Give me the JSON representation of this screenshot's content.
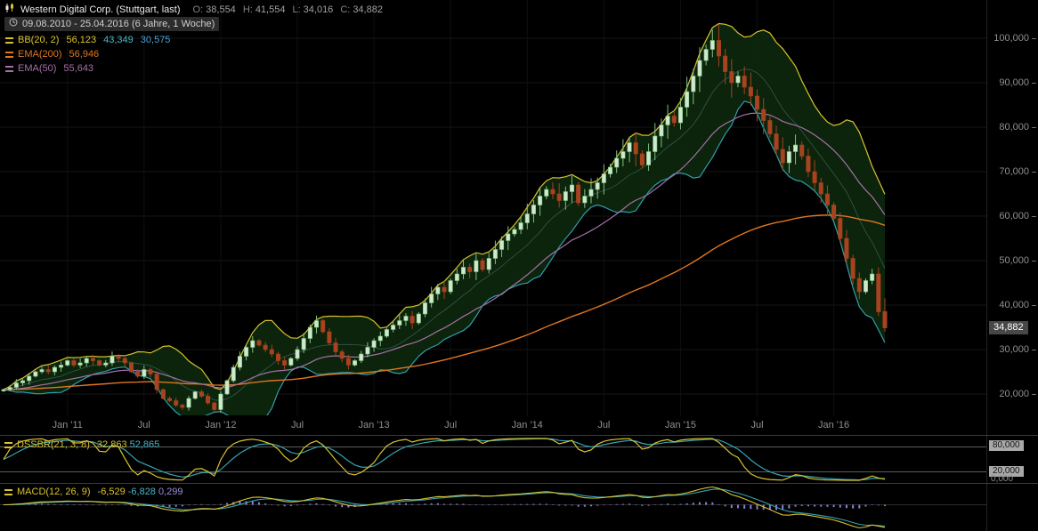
{
  "header": {
    "title": "Western Digital Corp. (Stuttgart, last)",
    "ohlc": [
      {
        "label": "O:",
        "value": "38,554"
      },
      {
        "label": "H:",
        "value": "41,554"
      },
      {
        "label": "L:",
        "value": "34,016"
      },
      {
        "label": "C:",
        "value": "34,882"
      }
    ],
    "period": "09.08.2010 - 25.04.2016 (6 Jahre, 1 Woche)"
  },
  "legend": [
    {
      "name": "BB(20, 2)",
      "color": "#d9c22f",
      "values": [
        {
          "text": "56,123",
          "color": "#d9c22f"
        },
        {
          "text": "43,349",
          "color": "#49b6c6"
        },
        {
          "text": "30,575",
          "color": "#4f9fd8"
        }
      ]
    },
    {
      "name": "EMA(200)",
      "color": "#df7621",
      "values": [
        {
          "text": "56,946",
          "color": "#df7621"
        }
      ]
    },
    {
      "name": "EMA(50)",
      "color": "#a570a8",
      "values": [
        {
          "text": "55,643",
          "color": "#a570a8"
        }
      ]
    }
  ],
  "price_axis": {
    "ticks": [
      {
        "v": 100,
        "label": "100,000"
      },
      {
        "v": 90,
        "label": "90,000"
      },
      {
        "v": 80,
        "label": "80,000"
      },
      {
        "v": 70,
        "label": "70,000"
      },
      {
        "v": 60,
        "label": "60,000"
      },
      {
        "v": 50,
        "label": "50,000"
      },
      {
        "v": 40,
        "label": "40,000"
      },
      {
        "v": 30,
        "label": "30,000"
      },
      {
        "v": 20,
        "label": "20,000"
      }
    ],
    "last_price_label": "34,882",
    "last_price_value": 34.882
  },
  "x_axis": {
    "ticks": [
      {
        "label": "Jan '11",
        "i": 10
      },
      {
        "label": "Jul",
        "i": 22
      },
      {
        "label": "Jan '12",
        "i": 34
      },
      {
        "label": "Jul",
        "i": 46
      },
      {
        "label": "Jan '13",
        "i": 58
      },
      {
        "label": "Jul",
        "i": 70
      },
      {
        "label": "Jan '14",
        "i": 82
      },
      {
        "label": "Jul",
        "i": 94
      },
      {
        "label": "Jan '15",
        "i": 106
      },
      {
        "label": "Jul",
        "i": 118
      },
      {
        "label": "Jan '16",
        "i": 130
      }
    ]
  },
  "oscillator_panel": {
    "name": "DSSBR(21, 3, 8)",
    "name_color": "#d9c22f",
    "values": [
      {
        "text": "32,863",
        "color": "#d9c22f"
      },
      {
        "text": "52,865",
        "color": "#49b6c6"
      }
    ],
    "levels": [
      {
        "value": 80,
        "label": "80,000",
        "badge": true
      },
      {
        "value": 20,
        "label": "20,000",
        "badge": true
      },
      {
        "value": 0,
        "label": "0,000",
        "badge": false
      }
    ]
  },
  "macd_panel": {
    "name": "MACD(12, 26, 9)",
    "name_color": "#d9c22f",
    "values": [
      {
        "text": "-6,529",
        "color": "#d9c22f"
      },
      {
        "text": "-6,828",
        "color": "#49b6c6"
      },
      {
        "text": "0,299",
        "color": "#9b8bdc"
      }
    ]
  },
  "chart_data": {
    "type": "candlestick",
    "title": "Western Digital Corp. (Stuttgart, last) weekly chart",
    "x_range": [
      "09.08.2010",
      "25.04.2016"
    ],
    "interval": "1 Woche",
    "y_range": [
      15,
      108.6
    ],
    "grid": true,
    "overlays": [
      {
        "type": "bollinger",
        "period": 20,
        "stddev": 2,
        "upper": 56.123,
        "middle": 43.349,
        "lower": 30.575
      },
      {
        "type": "ema",
        "period": 200,
        "value": 56.946
      },
      {
        "type": "ema",
        "period": 50,
        "value": 55.643
      }
    ],
    "sub_indicators": [
      {
        "type": "DSSBR",
        "params": [
          21,
          3,
          8
        ],
        "values": [
          32.863,
          52.865
        ],
        "levels": [
          80,
          20,
          0
        ]
      },
      {
        "type": "MACD",
        "params": [
          12,
          26,
          9
        ],
        "macd": -6.529,
        "signal": -6.828,
        "histogram": 0.299
      }
    ],
    "last_candle": {
      "o": 38.554,
      "h": 41.554,
      "l": 34.016,
      "c": 34.882
    },
    "close": [
      21.0,
      21.5,
      22.5,
      23.0,
      24.0,
      25.0,
      25.5,
      25.0,
      26.0,
      26.5,
      27.5,
      26.5,
      27.0,
      28.0,
      27.5,
      26.5,
      27.0,
      28.5,
      28.0,
      27.0,
      25.0,
      24.0,
      25.5,
      24.5,
      21.0,
      19.0,
      18.5,
      17.5,
      17.0,
      19.0,
      20.5,
      19.5,
      18.0,
      16.5,
      20.0,
      23.0,
      26.0,
      28.5,
      30.5,
      32.0,
      31.0,
      30.0,
      29.0,
      27.5,
      26.5,
      28.0,
      30.0,
      32.5,
      35.0,
      36.5,
      34.0,
      31.5,
      29.5,
      28.0,
      26.5,
      27.5,
      29.0,
      30.5,
      32.0,
      33.0,
      34.5,
      35.5,
      36.5,
      37.5,
      36.0,
      38.0,
      40.5,
      42.5,
      44.0,
      43.0,
      45.5,
      47.0,
      48.5,
      47.5,
      50.0,
      48.0,
      50.5,
      52.5,
      54.5,
      56.0,
      57.0,
      58.5,
      60.5,
      62.5,
      64.5,
      66.0,
      65.0,
      63.5,
      65.5,
      67.0,
      63.0,
      64.5,
      66.0,
      67.5,
      69.5,
      71.0,
      73.0,
      74.5,
      76.5,
      74.0,
      71.5,
      74.5,
      78.0,
      80.5,
      82.5,
      81.0,
      84.5,
      88.0,
      91.5,
      95.0,
      97.5,
      99.5,
      96.0,
      92.5,
      90.0,
      91.5,
      89.0,
      87.0,
      84.0,
      81.5,
      78.5,
      75.0,
      72.0,
      74.5,
      76.0,
      73.5,
      70.0,
      67.5,
      65.0,
      62.5,
      59.5,
      55.0,
      50.5,
      46.0,
      43.0,
      45.5,
      47.0,
      38.5,
      34.882
    ],
    "colors": {
      "bb_fill": "#0c270c",
      "bb_upper": "#d9c22f",
      "bb_lower": "#2f9fae",
      "bb_mid": "#5d8f96",
      "ema200": "#df7621",
      "ema50": "#a570a8",
      "candle_up": "#cfe9cf",
      "candle_up_stroke": "#82c082",
      "candle_down": "#a8431f",
      "grid": "#161616",
      "vgrid": "#101010",
      "hist": "#8b7fd6",
      "osc_fast": "#d9c22f",
      "osc_slow": "#35a3b0",
      "level_line": "#909090"
    }
  }
}
